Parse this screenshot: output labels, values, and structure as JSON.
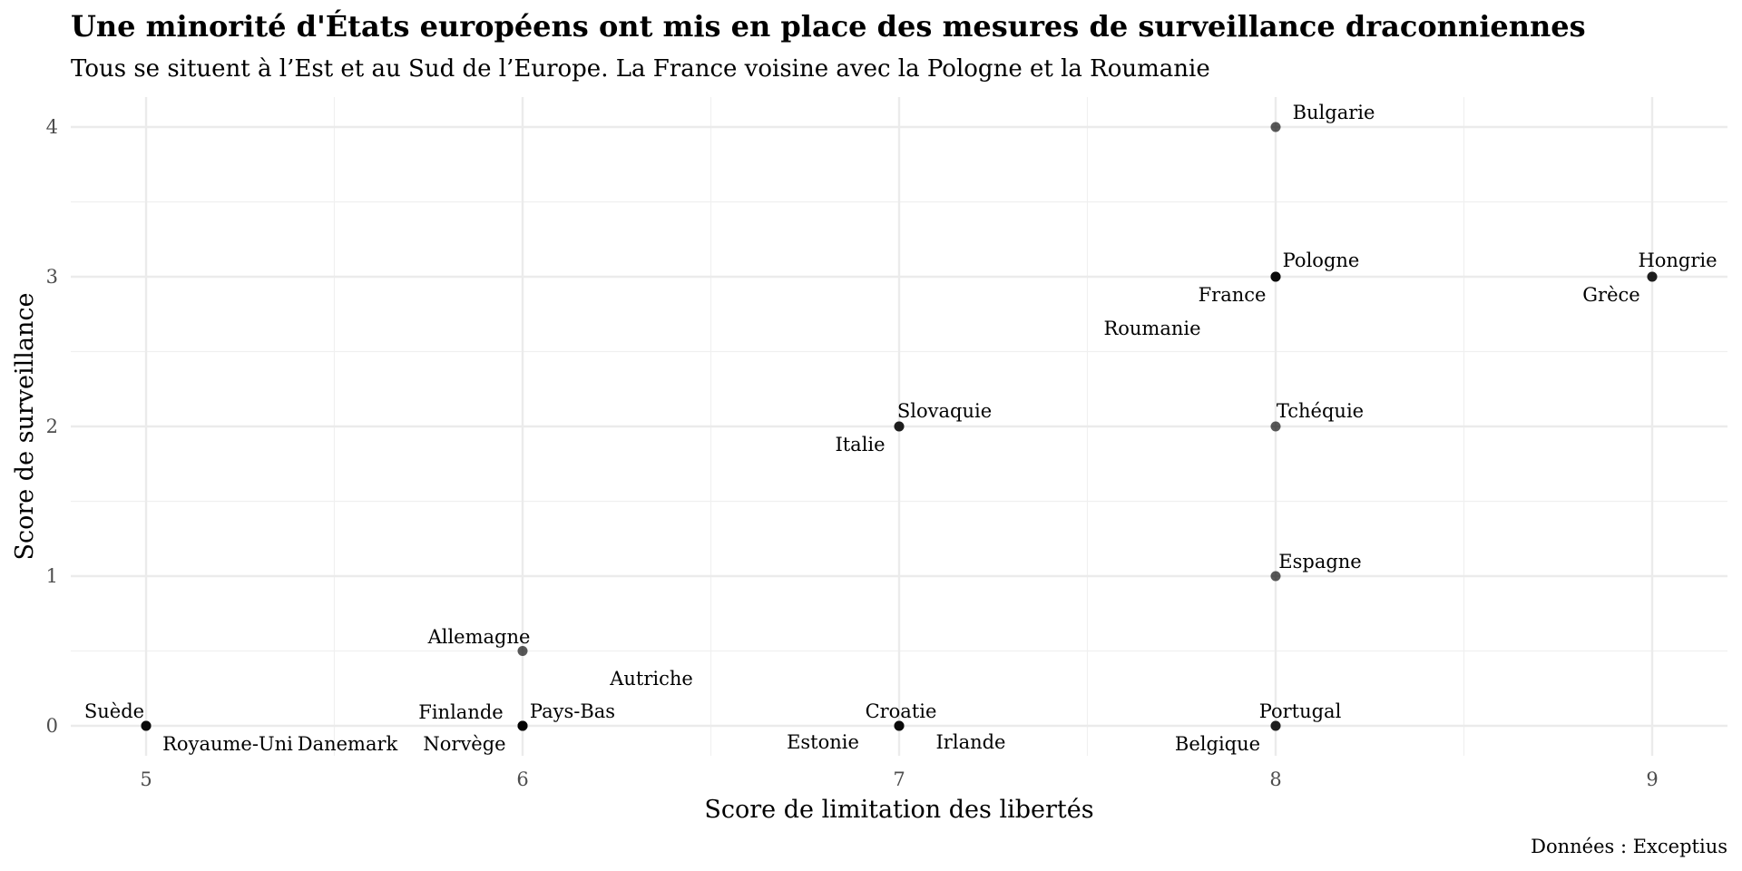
{
  "chart_data": {
    "type": "scatter",
    "title": "Une minorité d'États européens ont mis en place des mesures de surveillance draconniennes",
    "subtitle": "Tous se situent à l’Est et au Sud de l’Europe. La France voisine avec la Pologne et la Roumanie",
    "xlabel": "Score de limitation des libertés",
    "ylabel": "Score de surveillance",
    "caption": "Données : Exceptius",
    "xlim": [
      4.8,
      9.2
    ],
    "ylim": [
      -0.2,
      4.2
    ],
    "x_ticks": [
      "5",
      "6",
      "7",
      "8",
      "9"
    ],
    "y_ticks": [
      "0",
      "1",
      "2",
      "3",
      "4"
    ],
    "grid": true,
    "points": [
      {
        "label": "Suède",
        "x": 5,
        "y": 0
      },
      {
        "label": "Royaume-Uni",
        "x": 5,
        "y": 0
      },
      {
        "label": "Danemark",
        "x": 5,
        "y": 0
      },
      {
        "label": "Finlande",
        "x": 6,
        "y": 0
      },
      {
        "label": "Pays-Bas",
        "x": 6,
        "y": 0
      },
      {
        "label": "Norvège",
        "x": 6,
        "y": 0
      },
      {
        "label": "Autriche",
        "x": 6,
        "y": 0
      },
      {
        "label": "Allemagne",
        "x": 6,
        "y": 0.5
      },
      {
        "label": "Croatie",
        "x": 7,
        "y": 0
      },
      {
        "label": "Estonie",
        "x": 7,
        "y": 0
      },
      {
        "label": "Irlande",
        "x": 7,
        "y": 0
      },
      {
        "label": "Slovaquie",
        "x": 7,
        "y": 2
      },
      {
        "label": "Italie",
        "x": 7,
        "y": 2
      },
      {
        "label": "Portugal",
        "x": 8,
        "y": 0
      },
      {
        "label": "Belgique",
        "x": 8,
        "y": 0
      },
      {
        "label": "Espagne",
        "x": 8,
        "y": 1
      },
      {
        "label": "Tchéquie",
        "x": 8,
        "y": 2
      },
      {
        "label": "Pologne",
        "x": 8,
        "y": 3
      },
      {
        "label": "France",
        "x": 8,
        "y": 3
      },
      {
        "label": "Roumanie",
        "x": 8,
        "y": 3
      },
      {
        "label": "Bulgarie",
        "x": 8,
        "y": 4
      },
      {
        "label": "Hongrie",
        "x": 9,
        "y": 3
      },
      {
        "label": "Grèce",
        "x": 9,
        "y": 3
      }
    ]
  }
}
